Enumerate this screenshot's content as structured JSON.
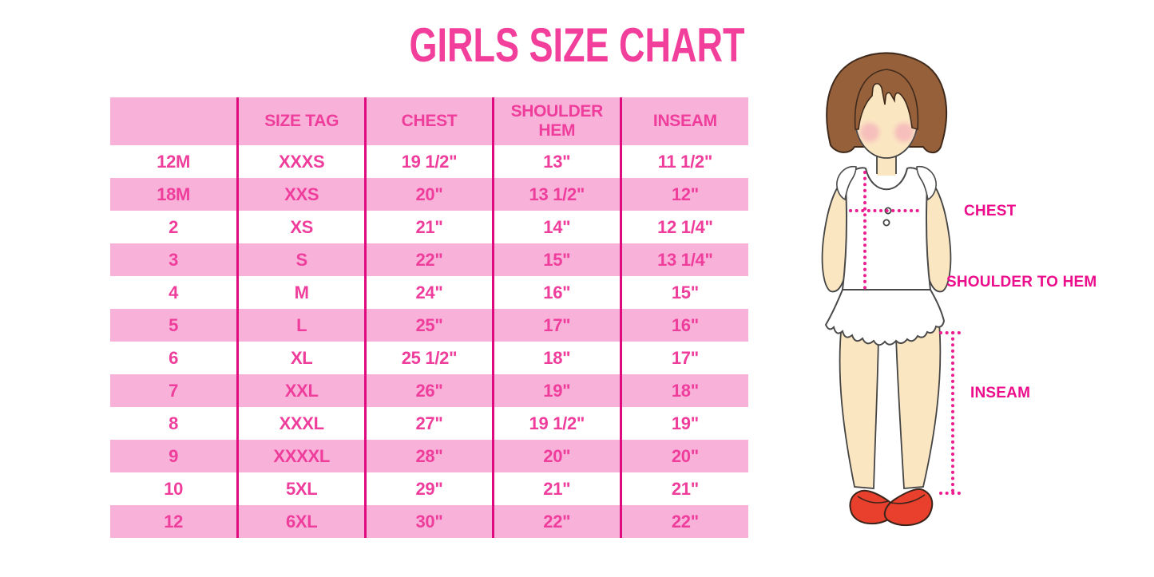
{
  "title": "GIRLS SIZE CHART",
  "table": {
    "headers": [
      "",
      "SIZE TAG",
      "CHEST",
      "SHOULDER HEM",
      "INSEAM"
    ],
    "rows": [
      [
        "12M",
        "XXXS",
        "19 1/2\"",
        "13\"",
        "11 1/2\""
      ],
      [
        "18M",
        "XXS",
        "20\"",
        "13 1/2\"",
        "12\""
      ],
      [
        "2",
        "XS",
        "21\"",
        "14\"",
        "12 1/4\""
      ],
      [
        "3",
        "S",
        "22\"",
        "15\"",
        "13 1/4\""
      ],
      [
        "4",
        "M",
        "24\"",
        "16\"",
        "15\""
      ],
      [
        "5",
        "L",
        "25\"",
        "17\"",
        "16\""
      ],
      [
        "6",
        "XL",
        "25 1/2\"",
        "18\"",
        "17\""
      ],
      [
        "7",
        "XXL",
        "26\"",
        "19\"",
        "18\""
      ],
      [
        "8",
        "XXXL",
        "27\"",
        "19 1/2\"",
        "19\""
      ],
      [
        "9",
        "XXXXL",
        "28\"",
        "20\"",
        "20\""
      ],
      [
        "10",
        "5XL",
        "29\"",
        "21\"",
        "21\""
      ],
      [
        "12",
        "6XL",
        "30\"",
        "22\"",
        "22\""
      ]
    ]
  },
  "figure": {
    "labels": {
      "chest": "CHEST",
      "shoulder_to_hem": "SHOULDER TO HEM",
      "inseam": "INSEAM"
    }
  },
  "colors": {
    "title_pink": "#F23F9C",
    "row_band_pink": "#F8B2DA",
    "divider_pink": "#DF0A7E",
    "cell_text_pink": "#EF3D9C",
    "label_magenta": "#EC0D8C",
    "dotted_line_magenta": "#EB1D8F",
    "hair_brown": "#96603A",
    "skin": "#FBE6C2",
    "shoe_red": "#E8402C"
  }
}
